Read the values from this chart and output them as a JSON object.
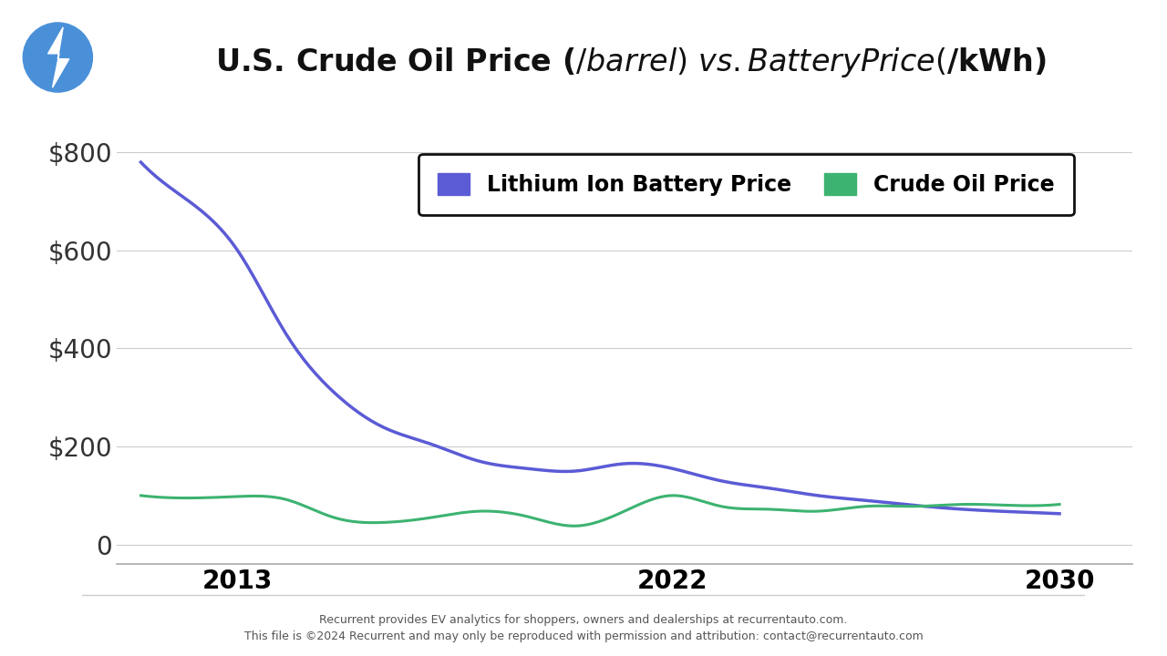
{
  "title": "U.S. Crude Oil Price ($/barrel) vs. Battery Price ($/kWh)",
  "background_color": "#ffffff",
  "battery_years": [
    2011,
    2012,
    2013,
    2014,
    2015,
    2016,
    2017,
    2018,
    2019,
    2020,
    2021,
    2022,
    2023,
    2024,
    2025,
    2026,
    2027,
    2028,
    2029,
    2030
  ],
  "battery_values": [
    780,
    700,
    600,
    430,
    310,
    240,
    205,
    170,
    155,
    150,
    165,
    155,
    130,
    115,
    100,
    90,
    80,
    72,
    67,
    63
  ],
  "oil_years": [
    2011,
    2012,
    2013,
    2014,
    2015,
    2016,
    2017,
    2018,
    2019,
    2020,
    2021,
    2022,
    2023,
    2024,
    2025,
    2026,
    2027,
    2028,
    2029,
    2030
  ],
  "oil_values": [
    100,
    95,
    98,
    92,
    55,
    45,
    55,
    68,
    57,
    38,
    68,
    100,
    78,
    72,
    68,
    78,
    78,
    82,
    80,
    82
  ],
  "battery_color": "#5B5BD6",
  "oil_color": "#3CB371",
  "battery_label": "Lithium Ion Battery Price",
  "oil_label": "Crude Oil Price",
  "yticks": [
    0,
    200,
    400,
    600,
    800
  ],
  "xtick_labels": [
    "2013",
    "2022",
    "2030"
  ],
  "xtick_positions": [
    2013,
    2022,
    2030
  ],
  "ylim": [
    -40,
    870
  ],
  "xlim": [
    2010.5,
    2031.5
  ],
  "footer_line1": "Recurrent provides EV analytics for shoppers, owners and dealerships at recurrentauto.com.",
  "footer_line2": "This file is ©2024 Recurrent and may only be reproduced with permission and attribution: contact@recurrentauto.com",
  "icon_color": "#4A90D9",
  "title_fontsize": 24,
  "tick_fontsize": 20,
  "legend_fontsize": 17,
  "footer_fontsize": 9
}
